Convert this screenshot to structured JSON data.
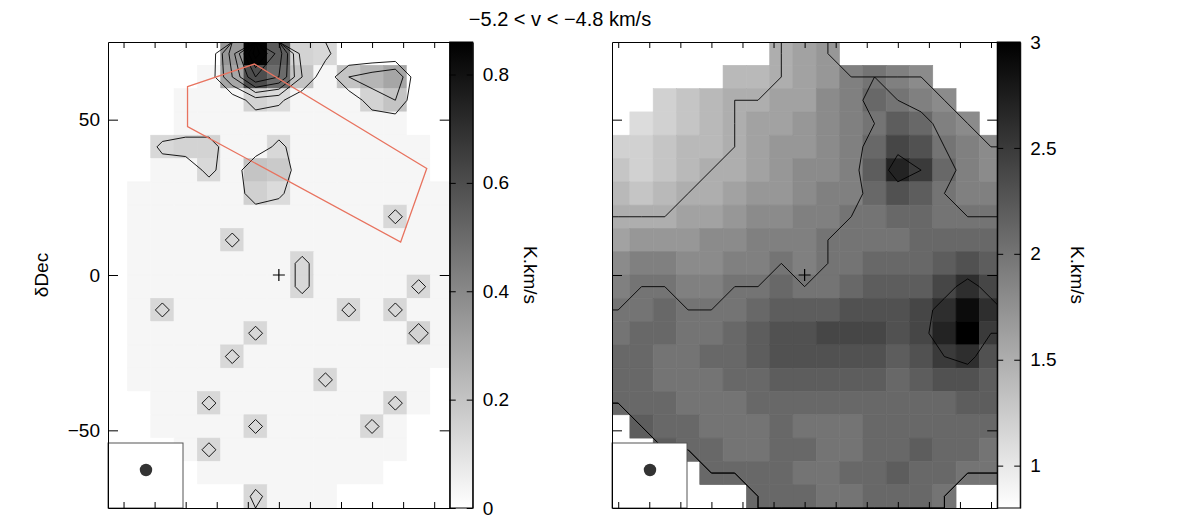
{
  "title": "−5.2 < v < −4.8 km/s",
  "chart_data": [
    {
      "type": "heatmap",
      "ylabel": "δDec",
      "x": [
        52.5,
        45,
        37.5,
        30,
        22.5,
        15,
        7.5,
        0,
        -7.5,
        -15,
        -22.5,
        -30,
        -37.5,
        -45,
        -52.5
      ],
      "y": [
        71.25,
        63.75,
        56.25,
        48.75,
        41.25,
        33.75,
        26.25,
        18.75,
        11.25,
        3.75,
        -3.75,
        -11.25,
        -18.75,
        -26.25,
        -33.75,
        -41.25,
        -48.75,
        -56.25,
        -63.75,
        -71.25
      ],
      "values": [
        [
          0,
          0,
          0,
          0,
          0,
          0.35,
          0.85,
          0.55,
          0.15,
          0.13,
          0,
          0,
          0,
          0,
          0
        ],
        [
          0,
          0,
          0,
          0,
          0.03,
          0.3,
          0.6,
          0.5,
          0.2,
          0.03,
          0.2,
          0.25,
          0.3,
          0,
          0
        ],
        [
          0,
          0,
          0,
          0.03,
          0.03,
          0.03,
          0.15,
          0.12,
          0.03,
          0.03,
          0.03,
          0.15,
          0.2,
          0,
          0
        ],
        [
          0,
          0,
          0,
          0.03,
          0.03,
          0.03,
          0.03,
          0.03,
          0.03,
          0.03,
          0.03,
          0.03,
          0.03,
          0,
          0
        ],
        [
          0,
          0,
          0.13,
          0.15,
          0.15,
          0.03,
          0.03,
          0.13,
          0.03,
          0.03,
          0.03,
          0.03,
          0.03,
          0.03,
          0
        ],
        [
          0,
          0,
          0.03,
          0.03,
          0.13,
          0.03,
          0.2,
          0.18,
          0.03,
          0.03,
          0.03,
          0.03,
          0.03,
          0.03,
          0
        ],
        [
          0,
          0.03,
          0.03,
          0.03,
          0.03,
          0.03,
          0.16,
          0.12,
          0.03,
          0.03,
          0.03,
          0.03,
          0.03,
          0.03,
          0.03
        ],
        [
          0,
          0.03,
          0.03,
          0.03,
          0.03,
          0.03,
          0.03,
          0.03,
          0.03,
          0.03,
          0.03,
          0.03,
          0.13,
          0.03,
          0.03
        ],
        [
          0,
          0.03,
          0.03,
          0.03,
          0.03,
          0.13,
          0.03,
          0.03,
          0.03,
          0.03,
          0.03,
          0.03,
          0.03,
          0.03,
          0.03
        ],
        [
          0,
          0.03,
          0.03,
          0.03,
          0.03,
          0.03,
          0.03,
          0.03,
          0.13,
          0.03,
          0.03,
          0.03,
          0.03,
          0.03,
          0.03
        ],
        [
          0,
          0.03,
          0.03,
          0.03,
          0.03,
          0.03,
          0.03,
          0.03,
          0.13,
          0.03,
          0.03,
          0.03,
          0.03,
          0.13,
          0.03
        ],
        [
          0,
          0.03,
          0.13,
          0.03,
          0.03,
          0.03,
          0.03,
          0.03,
          0.03,
          0.03,
          0.13,
          0.03,
          0.13,
          0.03,
          0.03
        ],
        [
          0,
          0.03,
          0.03,
          0.03,
          0.03,
          0.03,
          0.13,
          0.03,
          0.03,
          0.03,
          0.03,
          0.03,
          0.03,
          0.15,
          0.03
        ],
        [
          0,
          0.03,
          0.03,
          0.03,
          0.03,
          0.13,
          0.03,
          0.03,
          0.03,
          0.03,
          0.03,
          0.03,
          0.03,
          0.03,
          0.03
        ],
        [
          0,
          0.03,
          0.03,
          0.03,
          0.03,
          0.03,
          0.03,
          0.03,
          0.03,
          0.13,
          0.03,
          0.03,
          0.03,
          0.03,
          0
        ],
        [
          0,
          0,
          0.03,
          0.03,
          0.13,
          0.03,
          0.03,
          0.03,
          0.03,
          0.03,
          0.03,
          0.03,
          0.13,
          0.03,
          0
        ],
        [
          0,
          0,
          0.03,
          0.03,
          0.03,
          0.03,
          0.13,
          0.03,
          0.03,
          0.03,
          0.03,
          0.13,
          0.03,
          0,
          0
        ],
        [
          0,
          0,
          0,
          0.03,
          0.13,
          0.03,
          0.03,
          0.03,
          0.03,
          0.03,
          0.03,
          0.03,
          0.03,
          0,
          0
        ],
        [
          0,
          0,
          0,
          0,
          0.03,
          0.03,
          0.03,
          0.03,
          0.03,
          0.03,
          0.03,
          0.03,
          0,
          0,
          0
        ],
        [
          0,
          0,
          0,
          0,
          0,
          0,
          0.13,
          0.03,
          0.03,
          0.03,
          0,
          0,
          0,
          0,
          0
        ]
      ],
      "xlim": [
        55,
        -55
      ],
      "ylim": [
        -75,
        75
      ],
      "xticks": [
        50,
        40,
        30,
        20,
        10,
        0,
        -10,
        -20,
        -30,
        -40,
        -50
      ],
      "yticks": [
        {
          "value": -50,
          "label": "−50"
        },
        0,
        50
      ],
      "tick_labels": "y",
      "colorbar": {
        "label": "K.km/s",
        "range": [
          0,
          0.86
        ],
        "ticks": [
          0,
          0.2,
          0.4,
          0.6,
          0.8
        ]
      },
      "contour_levels": [
        0.1,
        0.2,
        0.3,
        0.4,
        0.5,
        0.6,
        0.7,
        0.8
      ],
      "region": [
        [
          29.4,
          60.6
        ],
        [
          7.9,
          67.9
        ],
        [
          -47.6,
          34.3
        ],
        [
          -39.2,
          10.6
        ],
        [
          29.4,
          47.8
        ]
      ],
      "beam": 4,
      "center": [
        0,
        0
      ]
    },
    {
      "type": "heatmap",
      "x": [
        60,
        52.5,
        45,
        37.5,
        30,
        22.5,
        15,
        7.5,
        0,
        -7.5,
        -15,
        -22.5,
        -30,
        -37.5,
        -45,
        -52.5,
        -60
      ],
      "y": [
        71.25,
        63.75,
        56.25,
        48.75,
        41.25,
        33.75,
        26.25,
        18.75,
        11.25,
        3.75,
        -3.75,
        -11.25,
        -18.75,
        -26.25,
        -33.75,
        -41.25,
        -48.75,
        -56.25,
        -63.75,
        -71.25
      ],
      "values": [
        [
          null,
          null,
          null,
          null,
          null,
          null,
          null,
          1.5,
          1.6,
          1.7,
          null,
          null,
          null,
          null,
          null,
          null,
          null
        ],
        [
          null,
          null,
          null,
          null,
          null,
          1.4,
          1.4,
          1.5,
          1.6,
          1.7,
          1.9,
          2.0,
          1.9,
          1.8,
          null,
          null,
          null
        ],
        [
          null,
          null,
          1.2,
          1.3,
          1.4,
          1.5,
          1.5,
          1.6,
          1.6,
          1.8,
          1.9,
          2.1,
          2.0,
          1.9,
          1.8,
          null,
          null
        ],
        [
          null,
          1.1,
          1.2,
          1.3,
          1.4,
          1.5,
          1.6,
          1.6,
          1.7,
          1.8,
          1.9,
          2.0,
          2.2,
          2.1,
          1.9,
          1.8,
          null
        ],
        [
          1.2,
          1.2,
          1.3,
          1.4,
          1.4,
          1.5,
          1.6,
          1.7,
          1.7,
          1.8,
          1.9,
          2.1,
          2.4,
          2.3,
          2.0,
          1.9,
          1.8
        ],
        [
          1.3,
          1.2,
          1.3,
          1.4,
          1.5,
          1.5,
          1.6,
          1.7,
          1.8,
          1.8,
          1.9,
          2.2,
          2.7,
          2.5,
          2.1,
          1.9,
          1.8
        ],
        [
          1.4,
          1.3,
          1.4,
          1.5,
          1.5,
          1.6,
          1.7,
          1.7,
          1.8,
          1.9,
          1.9,
          2.1,
          2.3,
          2.2,
          2.0,
          1.9,
          1.9
        ],
        [
          1.5,
          1.5,
          1.5,
          1.6,
          1.6,
          1.7,
          1.8,
          1.8,
          1.9,
          1.9,
          2.0,
          2.0,
          2.1,
          2.1,
          2.0,
          2.0,
          2.0
        ],
        [
          1.6,
          1.7,
          1.7,
          1.7,
          1.8,
          1.8,
          1.9,
          1.9,
          1.9,
          2.0,
          2.0,
          2.0,
          2.0,
          2.1,
          2.1,
          2.1,
          2.1
        ],
        [
          1.8,
          1.9,
          1.9,
          1.8,
          1.8,
          1.9,
          1.9,
          2.0,
          1.9,
          2.0,
          2.0,
          2.1,
          2.1,
          2.1,
          2.2,
          2.3,
          2.2
        ],
        [
          1.9,
          2.0,
          2.0,
          1.9,
          1.9,
          2.0,
          2.0,
          2.1,
          2.0,
          2.0,
          2.1,
          2.2,
          2.2,
          2.2,
          2.4,
          2.6,
          2.4
        ],
        [
          2.0,
          2.0,
          2.1,
          2.0,
          2.0,
          2.0,
          2.1,
          2.2,
          2.2,
          2.2,
          2.3,
          2.3,
          2.3,
          2.4,
          2.6,
          2.9,
          2.6
        ],
        [
          2.0,
          2.1,
          2.1,
          2.0,
          2.0,
          2.1,
          2.2,
          2.3,
          2.3,
          2.4,
          2.4,
          2.4,
          2.3,
          2.4,
          2.7,
          3.0,
          2.5
        ],
        [
          2.1,
          2.1,
          2.0,
          2.0,
          2.1,
          2.1,
          2.2,
          2.3,
          2.3,
          2.3,
          2.3,
          2.3,
          2.2,
          2.3,
          2.5,
          2.6,
          2.3
        ],
        [
          2.1,
          2.1,
          2.0,
          2.0,
          2.0,
          2.1,
          2.1,
          2.2,
          2.2,
          2.2,
          2.2,
          2.2,
          2.1,
          2.2,
          2.3,
          2.3,
          2.2
        ],
        [
          2.1,
          2.1,
          2.1,
          2.0,
          2.0,
          2.0,
          2.1,
          2.1,
          2.1,
          2.1,
          2.1,
          2.1,
          2.1,
          2.1,
          2.1,
          2.2,
          2.2
        ],
        [
          null,
          2.2,
          2.1,
          2.1,
          2.0,
          2.0,
          2.0,
          2.1,
          2.0,
          2.0,
          2.0,
          2.1,
          2.1,
          2.1,
          2.1,
          2.1,
          2.1
        ],
        [
          null,
          null,
          2.2,
          2.1,
          2.1,
          2.0,
          2.0,
          2.1,
          2.1,
          2.0,
          2.0,
          2.1,
          2.1,
          2.2,
          2.1,
          2.1,
          2.0
        ],
        [
          null,
          null,
          null,
          null,
          2.1,
          2.1,
          2.1,
          2.1,
          2.0,
          2.0,
          2.1,
          2.1,
          2.2,
          2.1,
          2.1,
          2.0,
          2.0
        ],
        [
          null,
          null,
          null,
          null,
          null,
          null,
          2.1,
          2.1,
          2.1,
          2.0,
          2.0,
          2.1,
          2.1,
          2.1,
          2.0,
          null,
          null
        ]
      ],
      "xlim": [
        62,
        -62
      ],
      "ylim": [
        -75,
        75
      ],
      "xticks": [
        60,
        50,
        40,
        30,
        20,
        10,
        0,
        -10,
        -20,
        -30,
        -40,
        -50,
        -60
      ],
      "yticks": [
        {
          "value": -50,
          "label": "−50"
        },
        0,
        50
      ],
      "tick_labels": false,
      "colorbar": {
        "label": "K.km/s",
        "range": [
          0.8,
          3
        ],
        "ticks": [
          1,
          1.5,
          2,
          2.5,
          3
        ]
      },
      "contour_levels": [
        1.5,
        2,
        2.5
      ],
      "beam": 4,
      "center": [
        0,
        0
      ]
    }
  ]
}
